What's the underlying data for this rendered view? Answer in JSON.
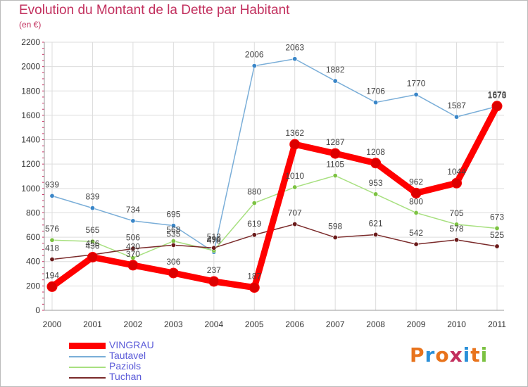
{
  "header": {
    "title": "Evolution du Montant de la Dette par Habitant",
    "subtitle": "(en €)"
  },
  "logo": {
    "text": "Proxiti",
    "colors": [
      "#e8731c",
      "#2a8fd8",
      "#e8731c",
      "#c2305e",
      "#2a8fd8",
      "#e8731c",
      "#7cc242"
    ]
  },
  "chart_data": {
    "type": "line",
    "title": "Evolution du Montant de la Dette par Habitant",
    "subtitle": "(en €)",
    "xlabel": "",
    "ylabel": "",
    "ylim": [
      0,
      2200
    ],
    "yticks": [
      0,
      200,
      400,
      600,
      800,
      1000,
      1200,
      1400,
      1600,
      1800,
      2000,
      2200
    ],
    "grid": true,
    "legend_position": "bottom-left",
    "categories": [
      "2000",
      "2001",
      "2002",
      "2003",
      "2004",
      "2005",
      "2006",
      "2007",
      "2008",
      "2009",
      "2010",
      "2011"
    ],
    "series": [
      {
        "name": "Tautavel",
        "color": "#7aaed8",
        "point_color": "#3a86c8",
        "values": [
          939,
          839,
          734,
          695,
          478,
          2006,
          2063,
          1882,
          1706,
          1770,
          1587,
          1673
        ]
      },
      {
        "name": "Paziols",
        "color": "#a8e080",
        "point_color": "#7cc242",
        "values": [
          576,
          565,
          430,
          568,
          490,
          880,
          1010,
          1105,
          953,
          800,
          705,
          673
        ]
      },
      {
        "name": "Tuchan",
        "color": "#7a2a2a",
        "point_color": "#6a1a1a",
        "values": [
          418,
          456,
          506,
          535,
          512,
          619,
          707,
          598,
          621,
          542,
          578,
          525
        ]
      },
      {
        "name": "VINGRAU",
        "color": "#ff0000",
        "point_color": "#dd0000",
        "values": [
          194,
          436,
          370,
          306,
          237,
          187,
          1362,
          1287,
          1208,
          962,
          1044,
          1676
        ]
      }
    ]
  }
}
